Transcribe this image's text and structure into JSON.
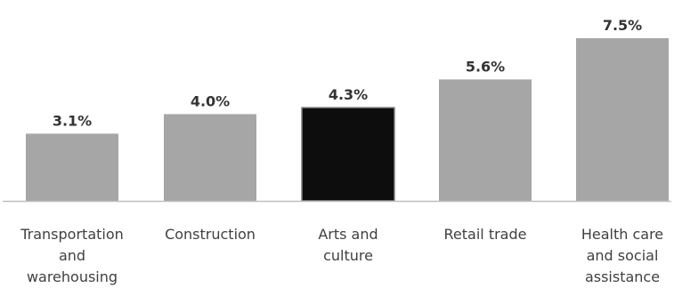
{
  "chart_data": {
    "type": "bar",
    "categories": [
      [
        "Transportation",
        "and",
        "warehousing"
      ],
      [
        "Construction"
      ],
      [
        "Arts and",
        "culture"
      ],
      [
        "Retail trade"
      ],
      [
        "Health care",
        "and social",
        "assistance"
      ]
    ],
    "values": [
      3.1,
      4.0,
      4.3,
      5.6,
      7.5
    ],
    "data_labels": [
      "3.1%",
      "4.0%",
      "4.3%",
      "5.6%",
      "7.5%"
    ],
    "highlight_index": 2,
    "colors": {
      "bar": "#a6a6a6",
      "highlight": "#0d0d0d",
      "highlight_border": "#7f7f7f",
      "axis": "#bfbfbf"
    },
    "ylim": [
      0,
      7.5
    ],
    "grid": false,
    "legend": "none",
    "title": "",
    "xlabel": "",
    "ylabel": ""
  }
}
